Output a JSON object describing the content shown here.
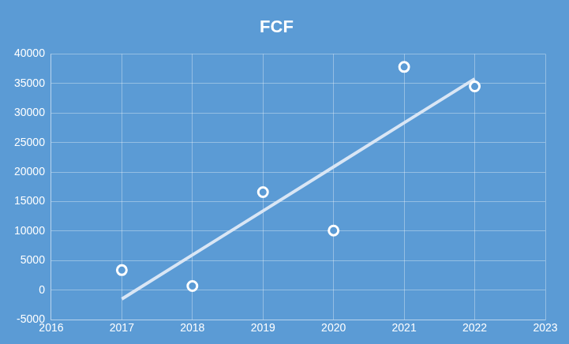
{
  "chart_data": {
    "type": "scatter",
    "title": "FCF",
    "x": [
      2017,
      2018,
      2019,
      2020,
      2021,
      2022
    ],
    "series": [
      {
        "type": "scatter",
        "marker": "circle",
        "color": "#ffffff",
        "values": [
          3400,
          700,
          16600,
          10100,
          37800,
          34500
        ]
      },
      {
        "type": "line",
        "line_style": "solid",
        "color": "#d9e6f5",
        "values": [
          -1500,
          5960,
          13420,
          20880,
          28340,
          35800
        ]
      }
    ],
    "xlim": [
      2016,
      2023
    ],
    "xticks": [
      2016,
      2017,
      2018,
      2019,
      2020,
      2021,
      2022,
      2023
    ],
    "ylim": [
      -5000,
      40000
    ],
    "yticks": [
      -5000,
      0,
      5000,
      10000,
      15000,
      20000,
      25000,
      30000,
      35000,
      40000
    ],
    "grid": true
  }
}
